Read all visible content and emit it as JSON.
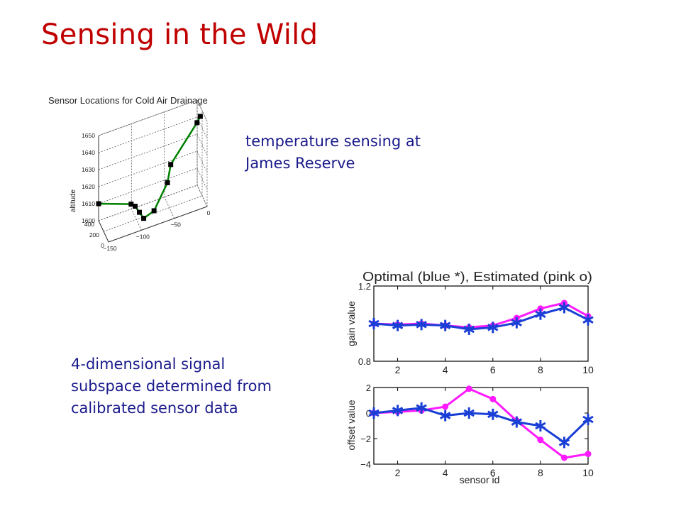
{
  "slide": {
    "title": "Sensing in the Wild",
    "caption_top": [
      "temperature sensing at",
      "James Reserve"
    ],
    "caption_bottom": [
      "4-dimensional signal",
      "subspace determined from",
      "calibrated sensor data"
    ]
  },
  "colors": {
    "title": "#c00000",
    "text": "#1a1a8c",
    "optimal": "#1a3fd6",
    "estimated": "#ff1aff",
    "path": "#008000"
  },
  "chart_data": [
    {
      "type": "scatter",
      "title": "Sensor Locations for Cold Air Drainage",
      "zlabel": "altitude",
      "z_ticks": [
        "1600",
        "1610",
        "1620",
        "1630",
        "1640",
        "1650"
      ],
      "x_ticks": [
        "400",
        "200",
        "0"
      ],
      "y_ticks": [
        "-150",
        "-100",
        "-50",
        "0"
      ],
      "points": [
        {
          "x": 400,
          "y": -150,
          "z": 1610
        },
        {
          "x": 150,
          "y": -110,
          "z": 1612
        },
        {
          "x": 120,
          "y": -105,
          "z": 1611
        },
        {
          "x": 80,
          "y": -100,
          "z": 1608
        },
        {
          "x": 40,
          "y": -95,
          "z": 1605
        },
        {
          "x": 20,
          "y": -80,
          "z": 1608
        },
        {
          "x": 10,
          "y": -60,
          "z": 1622
        },
        {
          "x": 10,
          "y": -55,
          "z": 1632
        },
        {
          "x": 10,
          "y": -15,
          "z": 1651
        },
        {
          "x": 10,
          "y": -10,
          "z": 1654
        }
      ]
    },
    {
      "type": "line",
      "title": "Optimal (blue *), Estimated (pink o)",
      "ylabel": "gain value",
      "x": [
        1,
        2,
        3,
        4,
        5,
        6,
        7,
        8,
        9,
        10
      ],
      "xlim": [
        1,
        10
      ],
      "ylim": [
        0.8,
        1.2
      ],
      "y_ticks": [
        "0.8",
        "1.2"
      ],
      "x_ticks": [
        "2",
        "4",
        "6",
        "8",
        "10"
      ],
      "series": [
        {
          "name": "Optimal",
          "marker": "*",
          "values": [
            1.0,
            0.99,
            0.995,
            0.99,
            0.97,
            0.98,
            1.005,
            1.05,
            1.085,
            1.02
          ]
        },
        {
          "name": "Estimated",
          "marker": "o",
          "values": [
            1.0,
            0.995,
            1.0,
            0.99,
            0.98,
            0.99,
            1.03,
            1.08,
            1.11,
            1.04
          ]
        }
      ]
    },
    {
      "type": "line",
      "xlabel": "sensor id",
      "ylabel": "offset value",
      "x": [
        1,
        2,
        3,
        4,
        5,
        6,
        7,
        8,
        9,
        10
      ],
      "xlim": [
        1,
        10
      ],
      "ylim": [
        -4,
        2
      ],
      "y_ticks": [
        "-4",
        "-2",
        "0",
        "2"
      ],
      "x_ticks": [
        "2",
        "4",
        "6",
        "8",
        "10"
      ],
      "series": [
        {
          "name": "Optimal",
          "marker": "*",
          "values": [
            0,
            0.2,
            0.4,
            -0.2,
            0,
            -0.1,
            -0.7,
            -1.0,
            -2.3,
            -0.5
          ]
        },
        {
          "name": "Estimated",
          "marker": "o",
          "values": [
            0,
            0.1,
            0.2,
            0.5,
            1.9,
            1.1,
            -0.6,
            -2.1,
            -3.5,
            -3.2
          ]
        }
      ]
    }
  ]
}
